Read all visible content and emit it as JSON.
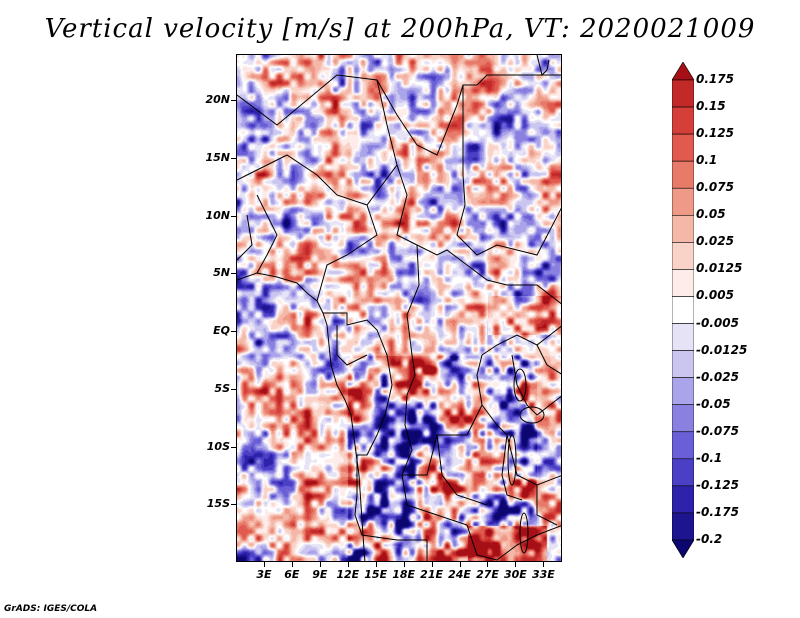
{
  "title": "Vertical velocity [m/s] at 200hPa, VT: 2020021009",
  "credit": "GrADS: IGES/COLA",
  "chart_data": {
    "type": "heatmap",
    "variable": "Vertical velocity",
    "units": "m/s",
    "level": "200hPa",
    "valid_time": "2020021009",
    "lon_range": [
      0,
      35
    ],
    "lat_range": [
      -20,
      24
    ],
    "y_ticks": [
      {
        "value": 20,
        "label": "20N"
      },
      {
        "value": 15,
        "label": "15N"
      },
      {
        "value": 10,
        "label": "10N"
      },
      {
        "value": 5,
        "label": "5N"
      },
      {
        "value": 0,
        "label": "EQ"
      },
      {
        "value": -5,
        "label": "5S"
      },
      {
        "value": -10,
        "label": "10S"
      },
      {
        "value": -15,
        "label": "15S"
      }
    ],
    "x_ticks": [
      {
        "value": 3,
        "label": "3E"
      },
      {
        "value": 6,
        "label": "6E"
      },
      {
        "value": 9,
        "label": "9E"
      },
      {
        "value": 12,
        "label": "12E"
      },
      {
        "value": 15,
        "label": "15E"
      },
      {
        "value": 18,
        "label": "18E"
      },
      {
        "value": 21,
        "label": "21E"
      },
      {
        "value": 24,
        "label": "24E"
      },
      {
        "value": 27,
        "label": "27E"
      },
      {
        "value": 30,
        "label": "30E"
      },
      {
        "value": 33,
        "label": "33E"
      }
    ],
    "colorbar": {
      "labels": [
        "0.175",
        "0.15",
        "0.125",
        "0.1",
        "0.075",
        "0.05",
        "0.025",
        "0.0125",
        "0.005",
        "-0.005",
        "-0.0125",
        "-0.025",
        "-0.05",
        "-0.075",
        "-0.1",
        "-0.125",
        "-0.175",
        "-0.2"
      ],
      "colors": [
        "#a50f15",
        "#c22a2a",
        "#d43f3a",
        "#e05a4f",
        "#e87a6a",
        "#ef9a88",
        "#f5b8a8",
        "#f9d3c8",
        "#fdecea",
        "#ffffff",
        "#e6e3f7",
        "#cbc6f0",
        "#aaa4ea",
        "#8a80e0",
        "#6a5fd6",
        "#4b3fc6",
        "#2e22aa",
        "#1d1490",
        "#0c0670"
      ]
    }
  }
}
